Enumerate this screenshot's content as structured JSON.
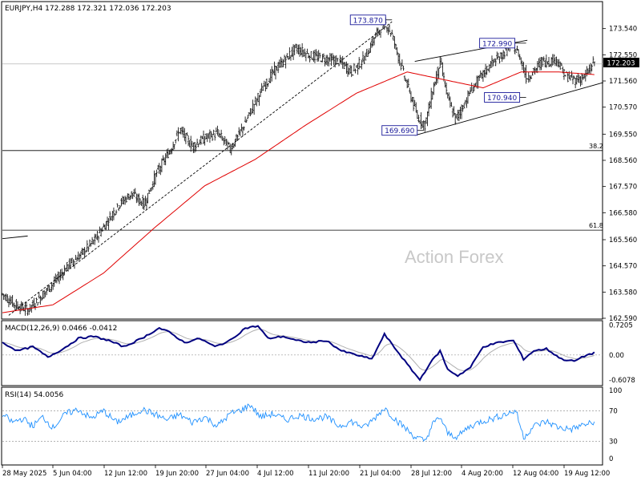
{
  "chart_data": [
    {
      "type": "candlestick",
      "symbol_header": "EURJPY,H4  172.288 172.321 172.036 172.203",
      "watermark": "Action Forex",
      "last_price": 172.203,
      "last_price_label": "172.203",
      "ylim": [
        162.59,
        174.53
      ],
      "y_ticks": [
        "173.540",
        "172.550",
        "171.560",
        "170.570",
        "169.550",
        "168.560",
        "167.570",
        "166.580",
        "165.560",
        "164.570",
        "163.580",
        "162.590"
      ],
      "x_ticks": [
        "28 May 2025",
        "5 Jun 04:00",
        "12 Jun 12:00",
        "19 Jun 20:00",
        "27 Jun 04:00",
        "4 Jul 12:00",
        "11 Jul 20:00",
        "21 Jul 04:00",
        "28 Jul 12:00",
        "4 Aug 20:00",
        "12 Aug 04:00",
        "19 Aug 12:00"
      ],
      "fib_levels": [
        {
          "label": "38.2",
          "price": 168.93
        },
        {
          "label": "61.8",
          "price": 165.92
        }
      ],
      "annotations": [
        {
          "label": "173.870",
          "price": 173.87
        },
        {
          "label": "172.990",
          "price": 172.99
        },
        {
          "label": "170.940",
          "price": 170.94
        },
        {
          "label": "169.690",
          "price": 169.69
        }
      ],
      "close_path": [
        [
          0,
          163.5
        ],
        [
          10,
          163.1
        ],
        [
          20,
          162.9
        ],
        [
          30,
          163.4
        ],
        [
          40,
          163.9
        ],
        [
          52,
          164.6
        ],
        [
          62,
          165.0
        ],
        [
          72,
          165.5
        ],
        [
          82,
          166.2
        ],
        [
          92,
          166.9
        ],
        [
          102,
          167.3
        ],
        [
          112,
          166.9
        ],
        [
          122,
          168.1
        ],
        [
          132,
          168.9
        ],
        [
          140,
          169.7
        ],
        [
          150,
          169.1
        ],
        [
          160,
          169.4
        ],
        [
          170,
          169.6
        ],
        [
          180,
          169.0
        ],
        [
          190,
          169.8
        ],
        [
          198,
          170.6
        ],
        [
          206,
          171.3
        ],
        [
          214,
          171.9
        ],
        [
          222,
          172.3
        ],
        [
          232,
          172.8
        ],
        [
          244,
          172.5
        ],
        [
          256,
          172.4
        ],
        [
          266,
          172.3
        ],
        [
          276,
          171.9
        ],
        [
          286,
          172.4
        ],
        [
          294,
          173.2
        ],
        [
          302,
          173.8
        ],
        [
          308,
          173.3
        ],
        [
          316,
          172.0
        ],
        [
          322,
          171.1
        ],
        [
          328,
          170.2
        ],
        [
          334,
          169.9
        ],
        [
          340,
          171.2
        ],
        [
          346,
          172.3
        ],
        [
          352,
          170.9
        ],
        [
          358,
          170.1
        ],
        [
          364,
          170.6
        ],
        [
          370,
          171.2
        ],
        [
          378,
          171.7
        ],
        [
          386,
          172.2
        ],
        [
          394,
          172.5
        ],
        [
          402,
          172.9
        ],
        [
          408,
          172.6
        ],
        [
          414,
          171.7
        ],
        [
          420,
          171.9
        ],
        [
          426,
          172.3
        ],
        [
          432,
          172.3
        ],
        [
          438,
          172.4
        ],
        [
          444,
          171.8
        ],
        [
          452,
          171.6
        ],
        [
          460,
          171.7
        ],
        [
          468,
          172.3
        ]
      ],
      "sma": [
        [
          0,
          162.8
        ],
        [
          40,
          163.1
        ],
        [
          80,
          164.3
        ],
        [
          120,
          166.0
        ],
        [
          160,
          167.6
        ],
        [
          200,
          168.6
        ],
        [
          240,
          169.9
        ],
        [
          280,
          171.1
        ],
        [
          320,
          171.9
        ],
        [
          350,
          171.6
        ],
        [
          380,
          171.3
        ],
        [
          410,
          171.9
        ],
        [
          440,
          171.9
        ],
        [
          468,
          171.8
        ]
      ],
      "trendlines": [
        {
          "from": [
            5,
            162.7
          ],
          "to": [
            308,
            173.8
          ],
          "style": "dashed"
        },
        {
          "from": [
            326,
            172.3
          ],
          "to": [
            415,
            173.1
          ],
          "style": "solid"
        },
        {
          "from": [
            326,
            169.5
          ],
          "to": [
            475,
            171.5
          ],
          "style": "solid"
        },
        {
          "from": [
            0,
            165.6
          ],
          "to": [
            20,
            165.7
          ],
          "style": "solid"
        }
      ],
      "macd": {
        "label": "MACD(12,26,9) 0.0466 -0.0412",
        "params": [
          12,
          26,
          9
        ],
        "value": 0.0466,
        "signal": -0.0412,
        "ylim": [
          -0.72,
          0.81
        ],
        "y_ticks": [
          "0.7205",
          "0.00",
          "-0.6078"
        ],
        "path": [
          [
            0,
            0.3
          ],
          [
            12,
            0.1
          ],
          [
            24,
            0.2
          ],
          [
            36,
            -0.05
          ],
          [
            48,
            0.15
          ],
          [
            60,
            0.4
          ],
          [
            72,
            0.45
          ],
          [
            84,
            0.35
          ],
          [
            96,
            0.2
          ],
          [
            110,
            0.4
          ],
          [
            124,
            0.65
          ],
          [
            132,
            0.55
          ],
          [
            144,
            0.3
          ],
          [
            156,
            0.4
          ],
          [
            168,
            0.2
          ],
          [
            180,
            0.35
          ],
          [
            192,
            0.65
          ],
          [
            202,
            0.7
          ],
          [
            210,
            0.4
          ],
          [
            222,
            0.45
          ],
          [
            232,
            0.35
          ],
          [
            244,
            0.3
          ],
          [
            256,
            0.35
          ],
          [
            268,
            0.1
          ],
          [
            280,
            0.0
          ],
          [
            292,
            -0.1
          ],
          [
            302,
            0.5
          ],
          [
            312,
            0.1
          ],
          [
            322,
            -0.3
          ],
          [
            330,
            -0.6
          ],
          [
            338,
            -0.2
          ],
          [
            346,
            0.1
          ],
          [
            352,
            -0.35
          ],
          [
            360,
            -0.5
          ],
          [
            370,
            -0.3
          ],
          [
            380,
            0.2
          ],
          [
            392,
            0.3
          ],
          [
            404,
            0.35
          ],
          [
            412,
            -0.1
          ],
          [
            420,
            0.1
          ],
          [
            430,
            0.15
          ],
          [
            442,
            -0.1
          ],
          [
            452,
            -0.15
          ],
          [
            462,
            0.0
          ],
          [
            468,
            0.05
          ]
        ]
      },
      "rsi": {
        "label": "RSI(14) 54.0056",
        "value": 54.0056,
        "ylim": [
          0,
          100
        ],
        "levels": [
          70,
          30
        ],
        "y_ticks": [
          "100",
          "70",
          "30",
          "0"
        ],
        "path": [
          [
            0,
            65
          ],
          [
            8,
            55
          ],
          [
            16,
            60
          ],
          [
            24,
            50
          ],
          [
            32,
            62
          ],
          [
            40,
            48
          ],
          [
            50,
            66
          ],
          [
            60,
            72
          ],
          [
            70,
            60
          ],
          [
            80,
            70
          ],
          [
            90,
            55
          ],
          [
            100,
            62
          ],
          [
            110,
            72
          ],
          [
            120,
            66
          ],
          [
            130,
            58
          ],
          [
            140,
            65
          ],
          [
            150,
            55
          ],
          [
            160,
            62
          ],
          [
            170,
            50
          ],
          [
            180,
            66
          ],
          [
            190,
            72
          ],
          [
            196,
            78
          ],
          [
            204,
            62
          ],
          [
            214,
            66
          ],
          [
            224,
            58
          ],
          [
            234,
            64
          ],
          [
            246,
            60
          ],
          [
            256,
            62
          ],
          [
            266,
            50
          ],
          [
            276,
            56
          ],
          [
            286,
            48
          ],
          [
            294,
            60
          ],
          [
            302,
            74
          ],
          [
            310,
            60
          ],
          [
            318,
            48
          ],
          [
            326,
            36
          ],
          [
            334,
            30
          ],
          [
            340,
            52
          ],
          [
            346,
            62
          ],
          [
            352,
            40
          ],
          [
            360,
            36
          ],
          [
            368,
            48
          ],
          [
            378,
            56
          ],
          [
            388,
            60
          ],
          [
            398,
            66
          ],
          [
            406,
            70
          ],
          [
            412,
            35
          ],
          [
            420,
            50
          ],
          [
            430,
            56
          ],
          [
            440,
            48
          ],
          [
            450,
            46
          ],
          [
            460,
            52
          ],
          [
            468,
            54
          ]
        ]
      }
    }
  ]
}
